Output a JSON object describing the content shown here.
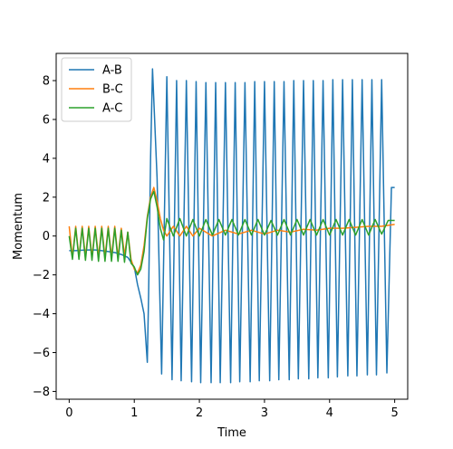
{
  "chart_data": {
    "type": "line",
    "title": "",
    "xlabel": "Time",
    "ylabel": "Momentum",
    "xlim": [
      -0.2,
      5.2
    ],
    "ylim": [
      -8.4,
      9.4
    ],
    "xticks": [
      0,
      1,
      2,
      3,
      4,
      5
    ],
    "xtick_labels": [
      "0",
      "1",
      "2",
      "3",
      "4",
      "5"
    ],
    "yticks": [
      -8,
      -6,
      -4,
      -2,
      0,
      2,
      4,
      6,
      8
    ],
    "ytick_labels": [
      "−8",
      "−6",
      "−4",
      "−2",
      "0",
      "2",
      "4",
      "6",
      "8"
    ],
    "grid": false,
    "legend_position": "top-left",
    "series": [
      {
        "name": "A-B",
        "color": "#1f77b4",
        "x": [
          0.0,
          0.1,
          0.2,
          0.3,
          0.4,
          0.5,
          0.6,
          0.7,
          0.8,
          0.9,
          1.0,
          1.05,
          1.1,
          1.15,
          1.2,
          1.22,
          1.25,
          1.28,
          1.35,
          1.42,
          1.5,
          1.58,
          1.65,
          1.72,
          1.8,
          1.88,
          1.95,
          2.02,
          2.1,
          2.18,
          2.25,
          2.32,
          2.4,
          2.48,
          2.55,
          2.62,
          2.7,
          2.78,
          2.85,
          2.92,
          3.0,
          3.08,
          3.15,
          3.22,
          3.3,
          3.38,
          3.45,
          3.52,
          3.6,
          3.68,
          3.75,
          3.82,
          3.9,
          3.98,
          4.05,
          4.12,
          4.2,
          4.28,
          4.35,
          4.42,
          4.5,
          4.58,
          4.65,
          4.72,
          4.8,
          4.88,
          4.95,
          5.0
        ],
        "y": [
          -0.75,
          -0.75,
          -0.73,
          -0.72,
          -0.72,
          -0.75,
          -0.8,
          -0.85,
          -0.95,
          -1.1,
          -1.6,
          -2.5,
          -3.2,
          -4.0,
          -6.5,
          -3.0,
          4.0,
          8.6,
          3.0,
          -7.1,
          8.2,
          -7.4,
          8.0,
          -7.45,
          8.0,
          -7.5,
          7.95,
          -7.55,
          7.9,
          -7.55,
          7.9,
          -7.55,
          7.9,
          -7.55,
          7.9,
          -7.5,
          7.9,
          -7.5,
          7.95,
          -7.45,
          7.95,
          -7.45,
          7.95,
          -7.4,
          7.95,
          -7.4,
          8.0,
          -7.35,
          8.0,
          -7.35,
          8.0,
          -7.3,
          8.0,
          -7.3,
          8.05,
          -7.25,
          8.05,
          -7.2,
          8.05,
          -7.2,
          8.05,
          -7.15,
          8.05,
          -7.15,
          8.05,
          -7.05,
          2.5,
          2.5
        ]
      },
      {
        "name": "B-C",
        "color": "#ff7f0e",
        "x": [
          0.0,
          0.05,
          0.1,
          0.15,
          0.2,
          0.25,
          0.3,
          0.35,
          0.4,
          0.45,
          0.5,
          0.55,
          0.6,
          0.65,
          0.7,
          0.75,
          0.8,
          0.85,
          0.9,
          0.95,
          1.0,
          1.05,
          1.1,
          1.15,
          1.2,
          1.25,
          1.3,
          1.35,
          1.4,
          1.45,
          1.5,
          1.6,
          1.7,
          1.8,
          1.9,
          2.0,
          2.2,
          2.4,
          2.6,
          2.8,
          3.0,
          3.2,
          3.4,
          3.6,
          3.8,
          4.0,
          4.2,
          4.4,
          4.6,
          4.8,
          5.0
        ],
        "y": [
          0.5,
          -1.1,
          0.5,
          -1.1,
          0.5,
          -1.1,
          0.5,
          -1.1,
          0.5,
          -1.1,
          0.5,
          -1.1,
          0.5,
          -1.1,
          0.5,
          -1.1,
          0.4,
          -1.0,
          0.2,
          -1.2,
          -1.7,
          -1.9,
          -1.5,
          -0.5,
          1.0,
          2.0,
          2.5,
          1.8,
          0.9,
          0.3,
          0.0,
          0.5,
          0.0,
          0.5,
          0.0,
          0.4,
          0.0,
          0.3,
          0.1,
          0.3,
          0.1,
          0.3,
          0.2,
          0.35,
          0.3,
          0.4,
          0.4,
          0.45,
          0.5,
          0.5,
          0.6
        ]
      },
      {
        "name": "A-C",
        "color": "#2ca02c",
        "x": [
          0.0,
          0.05,
          0.1,
          0.15,
          0.2,
          0.25,
          0.3,
          0.35,
          0.4,
          0.45,
          0.5,
          0.55,
          0.6,
          0.65,
          0.7,
          0.75,
          0.8,
          0.85,
          0.9,
          0.95,
          1.0,
          1.05,
          1.1,
          1.15,
          1.2,
          1.25,
          1.3,
          1.35,
          1.4,
          1.45,
          1.5,
          1.6,
          1.7,
          1.8,
          1.9,
          2.0,
          2.1,
          2.2,
          2.3,
          2.4,
          2.5,
          2.6,
          2.7,
          2.8,
          2.9,
          3.0,
          3.1,
          3.2,
          3.3,
          3.4,
          3.5,
          3.6,
          3.7,
          3.8,
          3.9,
          4.0,
          4.1,
          4.2,
          4.3,
          4.4,
          4.5,
          4.6,
          4.7,
          4.8,
          4.9,
          5.0
        ],
        "y": [
          0.0,
          -1.2,
          0.4,
          -1.2,
          0.4,
          -1.25,
          0.4,
          -1.25,
          0.4,
          -1.3,
          0.4,
          -1.3,
          0.4,
          -1.3,
          0.4,
          -1.3,
          0.3,
          -1.35,
          0.2,
          -1.4,
          -1.6,
          -2.0,
          -1.7,
          -0.8,
          0.9,
          1.9,
          2.3,
          1.5,
          0.4,
          -0.2,
          0.9,
          0.0,
          0.9,
          0.0,
          0.85,
          0.0,
          0.85,
          0.05,
          0.85,
          0.05,
          0.85,
          0.05,
          0.85,
          0.05,
          0.85,
          0.05,
          0.8,
          0.05,
          0.85,
          0.05,
          0.85,
          0.05,
          0.85,
          0.05,
          0.85,
          0.05,
          0.85,
          0.05,
          0.85,
          0.05,
          0.85,
          0.05,
          0.85,
          0.1,
          0.8,
          0.8
        ]
      }
    ]
  }
}
